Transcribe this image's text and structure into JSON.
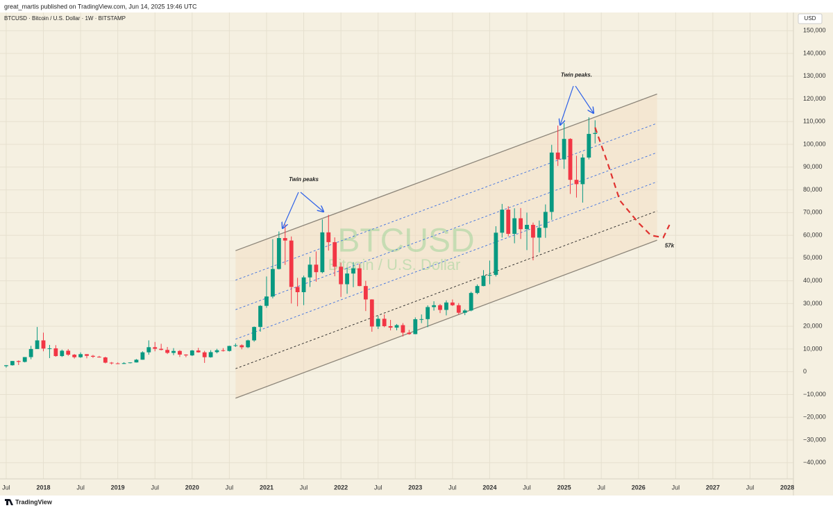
{
  "header": {
    "publisher": "great_martis published on TradingView.com, Jun 14, 2025 19:46 UTC"
  },
  "footer": {
    "brand": "TradingView"
  },
  "chart_data": {
    "type": "candlestick",
    "title": "BTCUSD · Bitcoin / U.S. Dollar · 1W · BITSTAMP",
    "watermark": "BTCUSD",
    "watermark_subtitle": "Bitcoin / U.S. Dollar",
    "currency": "USD",
    "up_color": "#089981",
    "down_color": "#f23645",
    "grid": true,
    "x": [
      "2017-07",
      "2017-08",
      "2017-09",
      "2017-10",
      "2017-11",
      "2017-12",
      "2018-01",
      "2018-02",
      "2018-03",
      "2018-04",
      "2018-05",
      "2018-06",
      "2018-07",
      "2018-08",
      "2018-09",
      "2018-10",
      "2018-11",
      "2018-12",
      "2019-01",
      "2019-02",
      "2019-03",
      "2019-04",
      "2019-05",
      "2019-06",
      "2019-07",
      "2019-08",
      "2019-09",
      "2019-10",
      "2019-11",
      "2019-12",
      "2020-01",
      "2020-02",
      "2020-03",
      "2020-04",
      "2020-05",
      "2020-06",
      "2020-07",
      "2020-08",
      "2020-09",
      "2020-10",
      "2020-11",
      "2020-12",
      "2021-01",
      "2021-02",
      "2021-03",
      "2021-04",
      "2021-05",
      "2021-06",
      "2021-07",
      "2021-08",
      "2021-09",
      "2021-10",
      "2021-11",
      "2021-12",
      "2022-01",
      "2022-02",
      "2022-03",
      "2022-04",
      "2022-05",
      "2022-06",
      "2022-07",
      "2022-08",
      "2022-09",
      "2022-10",
      "2022-11",
      "2022-12",
      "2023-01",
      "2023-02",
      "2023-03",
      "2023-04",
      "2023-05",
      "2023-06",
      "2023-07",
      "2023-08",
      "2023-09",
      "2023-10",
      "2023-11",
      "2023-12",
      "2024-01",
      "2024-02",
      "2024-03",
      "2024-04",
      "2024-05",
      "2024-06",
      "2024-07",
      "2024-08",
      "2024-09",
      "2024-10",
      "2024-11",
      "2024-12",
      "2025-01",
      "2025-02",
      "2025-03",
      "2025-04",
      "2025-05",
      "2025-06"
    ],
    "open": [
      2480,
      2870,
      4730,
      4340,
      6450,
      10000,
      13800,
      10200,
      10300,
      6900,
      9250,
      7500,
      6400,
      7730,
      7000,
      6600,
      6300,
      4000,
      3700,
      3450,
      3800,
      4100,
      5300,
      8550,
      10800,
      10100,
      9600,
      8300,
      9150,
      7550,
      7200,
      9350,
      8550,
      6400,
      8630,
      9450,
      9140,
      11350,
      11650,
      10780,
      13800,
      19700,
      28990,
      33100,
      45200,
      58800,
      57700,
      37300,
      35000,
      41500,
      47100,
      43800,
      61300,
      57000,
      46200,
      38500,
      43200,
      45500,
      37700,
      31800,
      19900,
      23300,
      20050,
      19400,
      20500,
      17200,
      16550,
      23100,
      23150,
      28450,
      29250,
      27200,
      30450,
      29250,
      25950,
      26950,
      34650,
      37700,
      42250,
      42600,
      61150,
      71300,
      60650,
      67500,
      62700,
      64600,
      59000,
      63300,
      70300,
      96400,
      93400,
      102400,
      84400,
      82500,
      94200,
      104600
    ],
    "high": [
      2900,
      4740,
      5000,
      6470,
      11400,
      19700,
      17200,
      11800,
      11700,
      9750,
      10000,
      7800,
      8500,
      7750,
      7400,
      7000,
      6600,
      4300,
      4100,
      4200,
      4100,
      5600,
      9000,
      13800,
      13100,
      12300,
      10900,
      10400,
      9500,
      7700,
      9600,
      10500,
      9200,
      9500,
      10100,
      10400,
      11450,
      12470,
      12050,
      14100,
      19900,
      29300,
      41900,
      58300,
      61700,
      64800,
      59500,
      41300,
      42300,
      50500,
      52900,
      67000,
      69000,
      59100,
      48000,
      45800,
      48200,
      47400,
      40000,
      31900,
      24600,
      25200,
      22800,
      21000,
      21400,
      18400,
      23900,
      25200,
      29200,
      31000,
      29800,
      31400,
      31800,
      30200,
      27500,
      35200,
      38400,
      44700,
      48900,
      64000,
      73800,
      72800,
      71900,
      72000,
      70000,
      65600,
      66500,
      73600,
      99800,
      108300,
      109400,
      102700,
      95000,
      95700,
      111900,
      110600
    ],
    "low": [
      1830,
      2700,
      2970,
      4100,
      5500,
      10700,
      9000,
      6000,
      6600,
      6500,
      7000,
      5800,
      6100,
      5900,
      6100,
      6200,
      3700,
      3200,
      3400,
      3400,
      3700,
      4050,
      5300,
      7500,
      9000,
      9400,
      7800,
      7300,
      6500,
      6400,
      6900,
      8400,
      3900,
      6200,
      8100,
      8900,
      8900,
      10900,
      9900,
      10400,
      13200,
      17600,
      28100,
      32300,
      45000,
      47000,
      30000,
      28800,
      29300,
      37300,
      39600,
      43300,
      53300,
      42000,
      32900,
      34300,
      37200,
      37600,
      26700,
      17600,
      18800,
      19600,
      18200,
      18200,
      15500,
      16300,
      16500,
      21400,
      19600,
      26900,
      25800,
      24800,
      28900,
      25200,
      24900,
      26600,
      34100,
      37600,
      38500,
      41900,
      59000,
      59600,
      56500,
      58400,
      53500,
      49000,
      52500,
      58900,
      66800,
      90500,
      89200,
      78200,
      76600,
      74400,
      93400,
      100400
    ],
    "close": [
      2870,
      4730,
      4340,
      6450,
      10000,
      13800,
      10200,
      10300,
      6900,
      9250,
      7500,
      6400,
      7730,
      7000,
      6600,
      6300,
      4000,
      3700,
      3450,
      3800,
      4100,
      5300,
      8550,
      10800,
      10100,
      9600,
      8300,
      9150,
      7550,
      7200,
      9350,
      8550,
      6400,
      8630,
      9450,
      9140,
      11350,
      11650,
      10780,
      13800,
      19700,
      28990,
      33100,
      45200,
      58800,
      57700,
      37300,
      35000,
      41500,
      47100,
      43800,
      61300,
      57000,
      46200,
      38500,
      43200,
      45500,
      37700,
      31800,
      19900,
      23300,
      20050,
      19400,
      20500,
      17200,
      16550,
      23100,
      23150,
      28450,
      29250,
      27200,
      30450,
      29250,
      25950,
      26950,
      34650,
      37700,
      42250,
      42600,
      61150,
      71300,
      60650,
      67500,
      62700,
      64600,
      59000,
      63300,
      70300,
      96400,
      93400,
      102400,
      84400,
      82500,
      94200,
      104600,
      105000
    ],
    "xlim": [
      "2017-06",
      "2028-02"
    ],
    "xticks": [
      {
        "value": "2017-07",
        "label": "Jul"
      },
      {
        "value": "2018-01",
        "label": "2018"
      },
      {
        "value": "2018-07",
        "label": "Jul"
      },
      {
        "value": "2019-01",
        "label": "2019"
      },
      {
        "value": "2019-07",
        "label": "Jul"
      },
      {
        "value": "2020-01",
        "label": "2020"
      },
      {
        "value": "2020-07",
        "label": "Jul"
      },
      {
        "value": "2021-01",
        "label": "2021"
      },
      {
        "value": "2021-07",
        "label": "Jul"
      },
      {
        "value": "2022-01",
        "label": "2022"
      },
      {
        "value": "2022-07",
        "label": "Jul"
      },
      {
        "value": "2023-01",
        "label": "2023"
      },
      {
        "value": "2023-07",
        "label": "Jul"
      },
      {
        "value": "2024-01",
        "label": "2024"
      },
      {
        "value": "2024-07",
        "label": "Jul"
      },
      {
        "value": "2025-01",
        "label": "2025"
      },
      {
        "value": "2025-07",
        "label": "Jul"
      },
      {
        "value": "2026-01",
        "label": "2026"
      },
      {
        "value": "2026-07",
        "label": "Jul"
      },
      {
        "value": "2027-01",
        "label": "2027"
      },
      {
        "value": "2027-07",
        "label": "Jul"
      },
      {
        "value": "2028-01",
        "label": "2028"
      }
    ],
    "ylim": [
      -47100,
      158000
    ],
    "yticks": [
      {
        "value": 150000,
        "label": "150,000"
      },
      {
        "value": 140000,
        "label": "140,000"
      },
      {
        "value": 130000,
        "label": "130,000"
      },
      {
        "value": 120000,
        "label": "120,000"
      },
      {
        "value": 110000,
        "label": "110,000"
      },
      {
        "value": 100000,
        "label": "100,000"
      },
      {
        "value": 90000,
        "label": "90,000"
      },
      {
        "value": 80000,
        "label": "80,000"
      },
      {
        "value": 70000,
        "label": "70,000"
      },
      {
        "value": 60000,
        "label": "60,000"
      },
      {
        "value": 50000,
        "label": "50,000"
      },
      {
        "value": 40000,
        "label": "40,000"
      },
      {
        "value": 30000,
        "label": "30,000"
      },
      {
        "value": 20000,
        "label": "20,000"
      },
      {
        "value": 10000,
        "label": "10,000"
      },
      0,
      {
        "value": -10000,
        "label": "−10,000"
      },
      {
        "value": -20000,
        "label": "−20,000"
      },
      {
        "value": -30000,
        "label": "−30,000"
      },
      {
        "value": -40000,
        "label": "−40,000"
      }
    ],
    "lines": [
      {
        "x": [
          "2020-08",
          "2026-04"
        ],
        "y": [
          53260,
          122130
        ],
        "style": "solid",
        "color": "#8c8579"
      },
      {
        "x": [
          "2020-08",
          "2026-04"
        ],
        "y": [
          40282,
          109274
        ],
        "style": "dashed",
        "color": "#3b6fe0"
      },
      {
        "x": [
          "2020-08",
          "2026-04"
        ],
        "y": [
          27304,
          96418
        ],
        "style": "dashed",
        "color": "#3b6fe0"
      },
      {
        "x": [
          "2020-08",
          "2026-04"
        ],
        "y": [
          14326,
          83562
        ],
        "style": "dashed",
        "color": "#3b6fe0"
      },
      {
        "x": [
          "2020-08",
          "2026-04"
        ],
        "y": [
          1348,
          70706
        ],
        "style": "dashed",
        "color": "#222222"
      },
      {
        "x": [
          "2020-08",
          "2026-04"
        ],
        "y": [
          -11630,
          57850
        ],
        "style": "solid",
        "color": "#8c8579"
      }
    ],
    "forecast": {
      "x": [
        "2025-06",
        "2025-08",
        "2025-10",
        "2026-01",
        "2026-03",
        "2026-05",
        "2026-06"
      ],
      "values": [
        107440,
        92000,
        75300,
        65500,
        60000,
        59000,
        64600
      ],
      "color": "#e0322f"
    },
    "annotations": [
      {
        "text": "Twin peaks",
        "x": "2021-07",
        "y": 84500
      },
      {
        "text": "Twin peaks.",
        "x": "2025-03",
        "y": 130400
      },
      {
        "text": "57k",
        "x": "2026-06",
        "y": 55400
      }
    ]
  }
}
